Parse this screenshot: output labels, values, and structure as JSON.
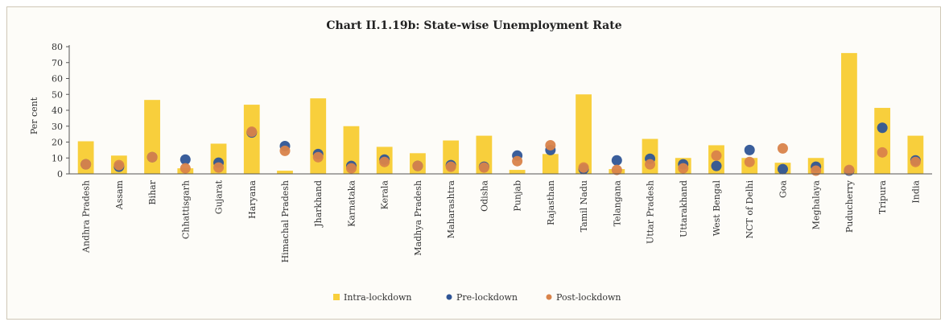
{
  "chart_data": {
    "type": "bar",
    "title": "Chart II.1.19b: State-wise Unemployment Rate",
    "ylabel": "Per cent",
    "ylim": [
      0,
      80
    ],
    "yticks": [
      0,
      10,
      20,
      30,
      40,
      50,
      60,
      70,
      80
    ],
    "grid": false,
    "legend_position": "bottom",
    "categories": [
      "Andhra Pradesh",
      "Assam",
      "Bihar",
      "Chhattisgarh",
      "Gujarat",
      "Haryana",
      "Himachal Pradesh",
      "Jharkhand",
      "Karnataka",
      "Kerala",
      "Madhya Pradesh",
      "Maharashtra",
      "Odisha",
      "Punjab",
      "Rajasthan",
      "Tamil Nadu",
      "Telangana",
      "Uttar Pradesh",
      "Uttarakhand",
      "West Bengal",
      "NCT of Delhi",
      "Goa",
      "Meghalaya",
      "Puducherry",
      "Tripura",
      "India"
    ],
    "series": [
      {
        "name": "Intra-lockdown",
        "mark": "bar",
        "color": "#f8cf3c",
        "values": [
          20.5,
          11.5,
          46.5,
          3.5,
          19,
          43.5,
          2,
          47.5,
          30,
          17,
          13,
          21,
          24,
          2.5,
          12.5,
          50,
          3,
          22,
          10,
          18,
          10,
          7,
          10,
          76,
          41.5,
          24
        ]
      },
      {
        "name": "Pre-lockdown",
        "mark": "dot",
        "color": "#2f5596",
        "values": [
          6,
          4.5,
          10.5,
          9,
          7,
          26,
          17.5,
          12.5,
          5,
          9,
          5,
          5.5,
          4.5,
          11.5,
          15,
          3,
          8.5,
          9.5,
          6,
          5,
          15,
          3,
          4.5,
          2,
          29,
          8.5
        ]
      },
      {
        "name": "Post-lockdown",
        "mark": "dot",
        "color": "#d9834a",
        "values": [
          6,
          5.5,
          10.5,
          3.5,
          4,
          26.5,
          14.5,
          10.5,
          3.5,
          7.5,
          5,
          4.5,
          4,
          8,
          18,
          4,
          2.5,
          6,
          3.5,
          11.5,
          7.5,
          16,
          2,
          2.5,
          13.5,
          7.5
        ]
      }
    ]
  }
}
